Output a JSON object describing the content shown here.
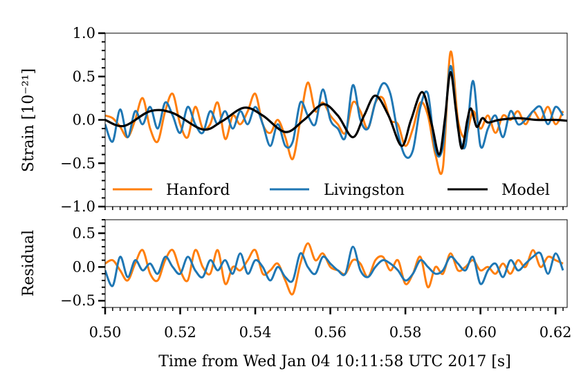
{
  "chart_data": [
    {
      "type": "line",
      "panel": "top",
      "ylabel": "Strain [10⁻²¹]",
      "ylim": [
        -1.0,
        1.0
      ],
      "xlim": [
        0.5,
        0.6231
      ],
      "yticks": [
        "1.0",
        "0.5",
        "0.0",
        "−0.5",
        "−1.0"
      ],
      "ytick_values": [
        1.0,
        0.5,
        0.0,
        -0.5,
        -1.0
      ],
      "legend": "bottom (inside, 3 columns)",
      "series": [
        {
          "name": "Hanford",
          "color": "#ff7f0e",
          "x": [
            0.5,
            0.502,
            0.504,
            0.506,
            0.508,
            0.51,
            0.512,
            0.514,
            0.516,
            0.518,
            0.52,
            0.522,
            0.524,
            0.526,
            0.528,
            0.53,
            0.532,
            0.534,
            0.536,
            0.538,
            0.54,
            0.542,
            0.544,
            0.546,
            0.548,
            0.55,
            0.552,
            0.554,
            0.556,
            0.558,
            0.56,
            0.562,
            0.564,
            0.566,
            0.568,
            0.57,
            0.572,
            0.574,
            0.576,
            0.578,
            0.58,
            0.582,
            0.584,
            0.586,
            0.588,
            0.59,
            0.592,
            0.594,
            0.596,
            0.598,
            0.6,
            0.602,
            0.604,
            0.606,
            0.608,
            0.61,
            0.612,
            0.614,
            0.616,
            0.618,
            0.62,
            0.622
          ],
          "y": [
            0.05,
            0.02,
            -0.08,
            -0.2,
            0.0,
            0.25,
            -0.1,
            -0.25,
            0.1,
            0.3,
            -0.05,
            -0.2,
            0.15,
            -0.1,
            -0.05,
            0.2,
            -0.22,
            0.05,
            -0.05,
            0.1,
            0.3,
            -0.05,
            -0.15,
            0.0,
            -0.2,
            -0.45,
            0.0,
            0.43,
            0.1,
            0.2,
            0.05,
            -0.05,
            -0.15,
            0.2,
            0.1,
            -0.1,
            0.2,
            0.25,
            0.0,
            -0.05,
            -0.3,
            -0.1,
            0.2,
            0.05,
            -0.4,
            -0.55,
            0.78,
            0.0,
            -0.2,
            0.1,
            -0.1,
            0.05,
            -0.15,
            0.05,
            0.0,
            0.1,
            -0.05,
            0.1,
            0.0,
            0.15,
            -0.05,
            0.1
          ]
        },
        {
          "name": "Livingston",
          "color": "#1f77b4",
          "x": [
            0.5,
            0.502,
            0.504,
            0.506,
            0.508,
            0.51,
            0.512,
            0.514,
            0.516,
            0.518,
            0.52,
            0.522,
            0.524,
            0.526,
            0.528,
            0.53,
            0.532,
            0.534,
            0.536,
            0.538,
            0.54,
            0.542,
            0.544,
            0.546,
            0.548,
            0.55,
            0.552,
            0.554,
            0.556,
            0.558,
            0.56,
            0.562,
            0.564,
            0.566,
            0.568,
            0.57,
            0.572,
            0.574,
            0.576,
            0.578,
            0.58,
            0.582,
            0.584,
            0.586,
            0.588,
            0.59,
            0.592,
            0.594,
            0.596,
            0.598,
            0.6,
            0.602,
            0.604,
            0.606,
            0.608,
            0.61,
            0.612,
            0.614,
            0.616,
            0.618,
            0.62,
            0.622
          ],
          "y": [
            -0.05,
            -0.25,
            0.12,
            -0.2,
            0.1,
            -0.05,
            0.15,
            -0.1,
            0.2,
            0.05,
            -0.15,
            0.15,
            -0.05,
            -0.15,
            0.1,
            -0.05,
            0.1,
            -0.1,
            0.1,
            -0.05,
            0.15,
            -0.05,
            -0.3,
            -0.05,
            -0.3,
            -0.25,
            0.2,
            0.05,
            -0.05,
            0.35,
            0.0,
            -0.1,
            -0.2,
            0.4,
            0.0,
            -0.1,
            0.2,
            0.42,
            0.3,
            -0.15,
            -0.42,
            -0.35,
            0.15,
            0.3,
            -0.35,
            -0.3,
            0.62,
            -0.1,
            -0.3,
            0.45,
            -0.3,
            -0.1,
            0.05,
            -0.2,
            0.1,
            -0.05,
            0.0,
            0.1,
            0.15,
            -0.05,
            0.15,
            0.05
          ]
        },
        {
          "name": "Model",
          "color": "#000000",
          "x": [
            0.5,
            0.505,
            0.512,
            0.518,
            0.526,
            0.531,
            0.537,
            0.542,
            0.548,
            0.553,
            0.558,
            0.562,
            0.566,
            0.569,
            0.572,
            0.5755,
            0.579,
            0.5815,
            0.5845,
            0.587,
            0.589,
            0.5905,
            0.592,
            0.5935,
            0.595,
            0.5965,
            0.5975,
            0.599,
            0.6005,
            0.602,
            0.605,
            0.61,
            0.615,
            0.62,
            0.6231
          ],
          "y": [
            0.0,
            -0.07,
            0.1,
            0.08,
            -0.11,
            -0.02,
            0.14,
            0.05,
            -0.14,
            0.0,
            0.18,
            0.05,
            -0.2,
            0.05,
            0.28,
            0.05,
            -0.3,
            0.0,
            0.32,
            -0.05,
            -0.4,
            0.0,
            0.55,
            0.1,
            -0.33,
            0.0,
            0.13,
            -0.08,
            0.02,
            -0.03,
            0.0,
            0.02,
            0.0,
            0.0,
            -0.01
          ]
        }
      ]
    },
    {
      "type": "line",
      "panel": "bottom",
      "ylabel": "Residual",
      "xlabel": "Time from Wed Jan 04 10:11:58 UTC 2017 [s]",
      "ylim": [
        -0.6,
        0.7
      ],
      "xlim": [
        0.5,
        0.6231
      ],
      "yticks": [
        "0.5",
        "0.0",
        "−0.5"
      ],
      "ytick_values": [
        0.5,
        0.0,
        -0.5
      ],
      "xticks": [
        "0.50",
        "0.52",
        "0.54",
        "0.56",
        "0.58",
        "0.60",
        "0.62"
      ],
      "xtick_values": [
        0.5,
        0.52,
        0.54,
        0.56,
        0.58,
        0.6,
        0.62
      ],
      "series": [
        {
          "name": "Hanford",
          "color": "#ff7f0e",
          "x": [
            0.5,
            0.502,
            0.504,
            0.506,
            0.508,
            0.51,
            0.512,
            0.514,
            0.516,
            0.518,
            0.52,
            0.522,
            0.524,
            0.526,
            0.528,
            0.53,
            0.532,
            0.534,
            0.536,
            0.538,
            0.54,
            0.542,
            0.544,
            0.546,
            0.548,
            0.55,
            0.552,
            0.554,
            0.556,
            0.558,
            0.56,
            0.562,
            0.564,
            0.566,
            0.568,
            0.57,
            0.572,
            0.574,
            0.576,
            0.578,
            0.58,
            0.582,
            0.584,
            0.586,
            0.588,
            0.59,
            0.592,
            0.594,
            0.596,
            0.598,
            0.6,
            0.602,
            0.604,
            0.606,
            0.608,
            0.61,
            0.612,
            0.614,
            0.616,
            0.618,
            0.62,
            0.622
          ],
          "y": [
            0.05,
            0.1,
            -0.05,
            -0.2,
            0.05,
            0.25,
            -0.1,
            -0.2,
            0.1,
            0.25,
            -0.05,
            -0.2,
            0.25,
            0.0,
            -0.1,
            0.25,
            -0.25,
            0.0,
            -0.05,
            0.1,
            0.25,
            -0.1,
            -0.05,
            0.05,
            -0.2,
            -0.4,
            0.05,
            0.35,
            0.1,
            0.2,
            0.0,
            -0.05,
            -0.1,
            0.1,
            0.05,
            -0.15,
            0.1,
            0.15,
            -0.05,
            0.1,
            -0.25,
            -0.1,
            0.15,
            -0.3,
            0.0,
            -0.1,
            0.2,
            -0.05,
            0.0,
            0.1,
            -0.05,
            0.0,
            -0.1,
            0.05,
            -0.1,
            0.1,
            0.0,
            0.25,
            0.0,
            0.15,
            0.1,
            0.05
          ]
        },
        {
          "name": "Livingston",
          "color": "#1f77b4",
          "x": [
            0.5,
            0.502,
            0.504,
            0.506,
            0.508,
            0.51,
            0.512,
            0.514,
            0.516,
            0.518,
            0.52,
            0.522,
            0.524,
            0.526,
            0.528,
            0.53,
            0.532,
            0.534,
            0.536,
            0.538,
            0.54,
            0.542,
            0.544,
            0.546,
            0.548,
            0.55,
            0.552,
            0.554,
            0.556,
            0.558,
            0.56,
            0.562,
            0.564,
            0.566,
            0.568,
            0.57,
            0.572,
            0.574,
            0.576,
            0.578,
            0.58,
            0.582,
            0.584,
            0.586,
            0.588,
            0.59,
            0.592,
            0.594,
            0.596,
            0.598,
            0.6,
            0.602,
            0.604,
            0.606,
            0.608,
            0.61,
            0.612,
            0.614,
            0.616,
            0.618,
            0.62,
            0.622
          ],
          "y": [
            -0.05,
            -0.28,
            0.15,
            -0.15,
            0.1,
            -0.05,
            0.05,
            -0.1,
            0.15,
            0.0,
            -0.1,
            0.15,
            -0.05,
            -0.15,
            0.1,
            -0.05,
            0.1,
            -0.1,
            0.2,
            -0.1,
            0.1,
            0.0,
            -0.2,
            0.0,
            -0.15,
            -0.2,
            0.2,
            0.0,
            -0.1,
            0.15,
            0.05,
            -0.05,
            -0.1,
            0.3,
            -0.05,
            -0.15,
            0.0,
            0.1,
            0.05,
            -0.05,
            -0.2,
            -0.1,
            0.1,
            0.0,
            -0.1,
            -0.05,
            0.15,
            0.05,
            -0.05,
            0.15,
            -0.25,
            -0.05,
            0.05,
            -0.15,
            0.1,
            -0.05,
            0.05,
            0.15,
            0.2,
            -0.1,
            0.2,
            -0.05
          ]
        }
      ]
    }
  ]
}
